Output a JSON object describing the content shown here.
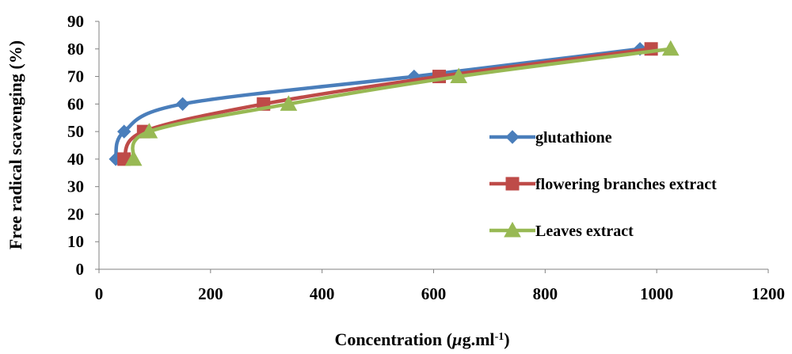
{
  "chart_data": {
    "type": "line",
    "title": "",
    "xlabel": "Concentration (µg.ml-1)",
    "xlabel_parts": {
      "main": "Concentration (",
      "mu": "µ",
      "rest": "g.ml",
      "sup": "-1",
      "close": ")"
    },
    "ylabel": "Free radical scavenging (%)",
    "xlim": [
      0,
      1200
    ],
    "ylim": [
      0,
      90
    ],
    "xticks": [
      0,
      200,
      400,
      600,
      800,
      1000,
      1200
    ],
    "yticks": [
      0,
      10,
      20,
      30,
      40,
      50,
      60,
      70,
      80,
      90
    ],
    "grid": false,
    "smooth": true,
    "legend_position": "right",
    "series": [
      {
        "name": "glutathione",
        "color": "#4a7ebb",
        "marker": "diamond",
        "x": [
          30,
          45,
          150,
          565,
          970
        ],
        "y": [
          40,
          50,
          60,
          70,
          80
        ]
      },
      {
        "name": "flowering branches extract",
        "color": "#be4b48",
        "marker": "square",
        "x": [
          45,
          80,
          295,
          610,
          990
        ],
        "y": [
          40,
          50,
          60,
          70,
          80
        ]
      },
      {
        "name": "Leaves extract",
        "color": "#98b954",
        "marker": "triangle",
        "x": [
          62,
          90,
          340,
          645,
          1025
        ],
        "y": [
          40,
          50,
          60,
          70,
          80
        ]
      }
    ]
  }
}
